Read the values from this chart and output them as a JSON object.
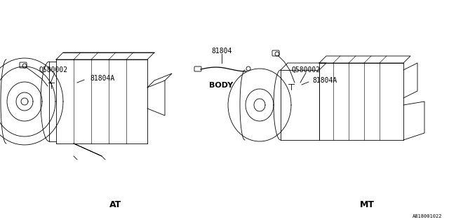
{
  "bg_color": "#ffffff",
  "diagram_id": "A818001022",
  "labels": {
    "at": "AT",
    "mt": "MT",
    "body": "BODY",
    "q580002_at": "Q580002",
    "81804A_at": "81804A",
    "81804": "81804",
    "q580002_mt": "Q580002",
    "81804A_mt": "81804A"
  },
  "line_color": "#000000",
  "text_color": "#000000",
  "lw": 0.6,
  "font_size": 7
}
